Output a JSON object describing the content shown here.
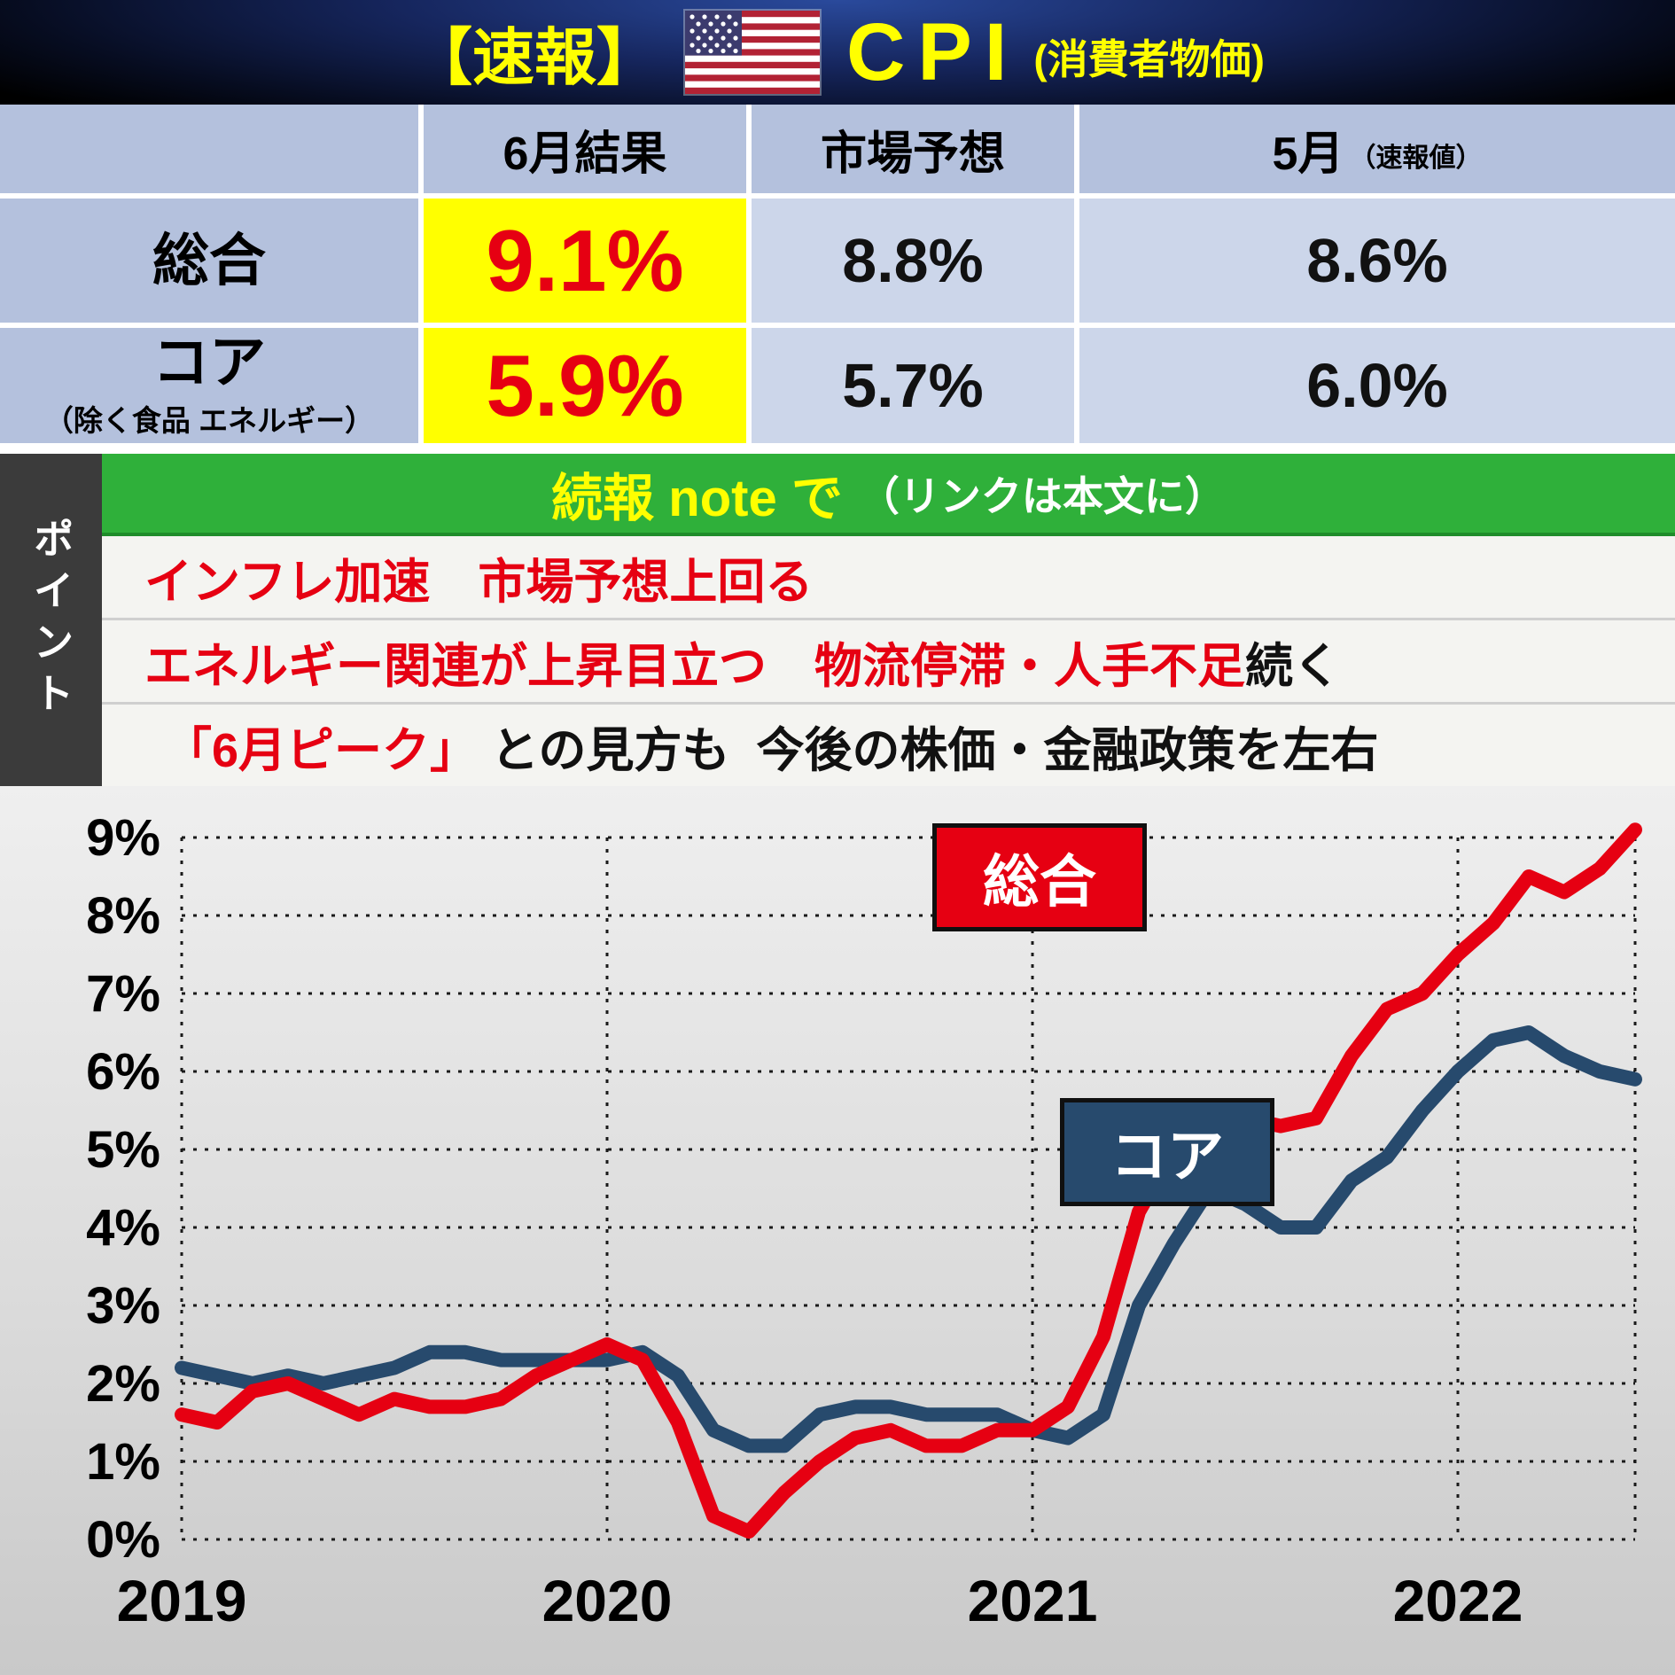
{
  "header": {
    "breaking": "【速報】",
    "title": "CPI",
    "subtitle": "(消費者物価)"
  },
  "table": {
    "col_result": "6月結果",
    "col_forecast": "市場予想",
    "col_prev": "5月",
    "col_prev_note": "（速報値）",
    "rows": [
      {
        "label": "総合",
        "sublabel": "",
        "result": "9.1%",
        "forecast": "8.8%",
        "previous": "8.6%"
      },
      {
        "label": "コア",
        "sublabel": "（除く食品 エネルギー）",
        "result": "5.9%",
        "forecast": "5.7%",
        "previous": "6.0%"
      }
    ]
  },
  "points": {
    "side_label": "ポイント",
    "banner": {
      "highlight": "続報 note で",
      "rest": "（リンクは本文に）"
    },
    "items": [
      {
        "red": "インフレ加速　市場予想上回る",
        "black": ""
      },
      {
        "red": "エネルギー関連が上昇目立つ　物流停滞・人手不足",
        "black": "続く"
      },
      {
        "red": "「6月ピーク」",
        "black": " との見方も  今後の株価・金融政策を左右"
      }
    ]
  },
  "chart_data": {
    "type": "line",
    "title": "",
    "x_labels": [
      "2019",
      "2020",
      "2021",
      "2022"
    ],
    "x_unit": "month",
    "x_range": "2019-01 to 2022-06",
    "ylim": [
      0,
      9.5
    ],
    "yticks": [
      "9%",
      "8%",
      "7%",
      "6%",
      "5%",
      "4%",
      "3%",
      "2%",
      "1%",
      "0%"
    ],
    "grid": "dotted",
    "legend_position": "inside",
    "series": [
      {
        "name": "総合",
        "color": "#e60012",
        "values": [
          1.6,
          1.5,
          1.9,
          2.0,
          1.8,
          1.6,
          1.8,
          1.7,
          1.7,
          1.8,
          2.1,
          2.3,
          2.5,
          2.3,
          1.5,
          0.3,
          0.1,
          0.6,
          1.0,
          1.3,
          1.4,
          1.2,
          1.2,
          1.4,
          1.4,
          1.7,
          2.6,
          4.2,
          5.0,
          5.4,
          5.4,
          5.3,
          5.4,
          6.2,
          6.8,
          7.0,
          7.5,
          7.9,
          8.5,
          8.3,
          8.6,
          9.1
        ]
      },
      {
        "name": "コア",
        "color": "#274a6d",
        "values": [
          2.2,
          2.1,
          2.0,
          2.1,
          2.0,
          2.1,
          2.2,
          2.4,
          2.4,
          2.3,
          2.3,
          2.3,
          2.3,
          2.4,
          2.1,
          1.4,
          1.2,
          1.2,
          1.6,
          1.7,
          1.7,
          1.6,
          1.6,
          1.6,
          1.4,
          1.3,
          1.6,
          3.0,
          3.8,
          4.5,
          4.3,
          4.0,
          4.0,
          4.6,
          4.9,
          5.5,
          6.0,
          6.4,
          6.5,
          6.2,
          6.0,
          5.9
        ]
      }
    ]
  },
  "colors": {
    "accent_yellow": "#ffff00",
    "accent_red": "#e60012",
    "navy": "#274a6d",
    "green_banner": "#2fb03a",
    "cell_blue_dark": "#b4c1dd",
    "cell_blue_light": "#ccd6ea",
    "header_bg": "#0d1b3e"
  }
}
